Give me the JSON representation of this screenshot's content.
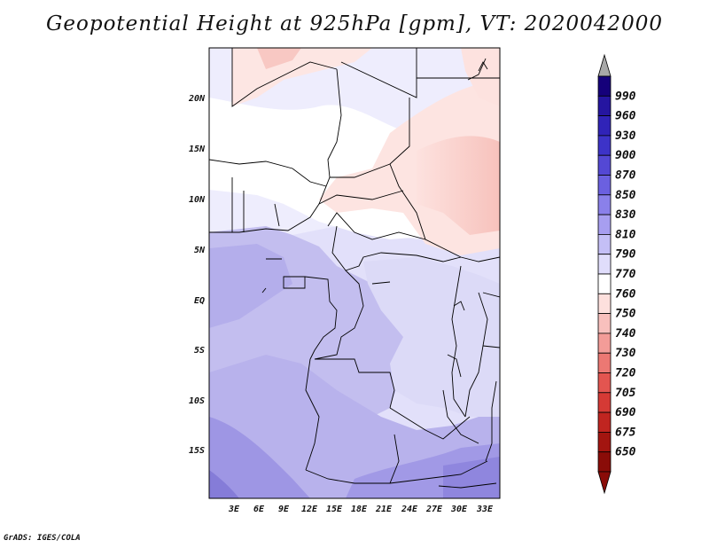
{
  "title": "Geopotential Height at 925hPa [gpm], VT: 2020042000",
  "footer": "GrADS: IGES/COLA",
  "map": {
    "lat_labels": [
      "20N",
      "15N",
      "10N",
      "5N",
      "EQ",
      "5S",
      "10S",
      "15S"
    ],
    "lon_labels": [
      "3E",
      "6E",
      "9E",
      "12E",
      "15E",
      "18E",
      "21E",
      "24E",
      "27E",
      "30E",
      "33E"
    ]
  },
  "colorbar": {
    "levels": [
      "990",
      "960",
      "930",
      "900",
      "870",
      "850",
      "830",
      "810",
      "790",
      "770",
      "760",
      "750",
      "740",
      "730",
      "720",
      "705",
      "690",
      "675",
      "650"
    ],
    "colors": [
      "#15007a",
      "#2515a0",
      "#3023b8",
      "#3d33c8",
      "#5448d4",
      "#6b60e0",
      "#8a80ea",
      "#a79ef0",
      "#c4bff6",
      "#e0ddfb",
      "#ffffff",
      "#fde0dd",
      "#f8c0bd",
      "#f39c98",
      "#ec7873",
      "#e35550",
      "#d53a35",
      "#c02520",
      "#a31510",
      "#8a0c08"
    ],
    "top_arrow_color": "#a8a8a8"
  }
}
